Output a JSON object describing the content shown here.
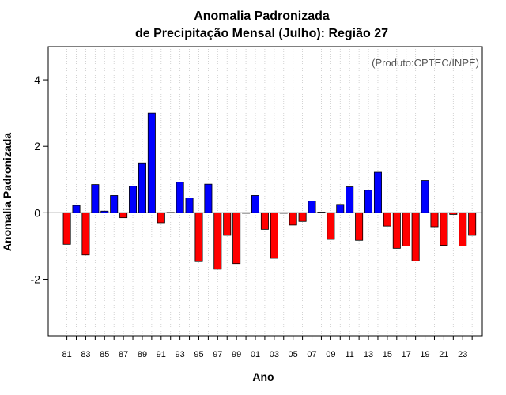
{
  "chart_data": {
    "type": "bar",
    "title": "Anomalia Padronizada",
    "subtitle": "de Precipitação Mensal (Julho): Região 27",
    "xlabel": "Ano",
    "ylabel": "Anomalia Padronizada",
    "credit": "(Produto:CPTEC/INPE)",
    "ylim": [
      -3.7,
      5.0
    ],
    "yticks": [
      -2,
      0,
      2,
      4
    ],
    "ytick_labels": [
      "-2",
      "0",
      "2",
      "4"
    ],
    "grid": "vertical dotted",
    "positive_color": "#0000ff",
    "negative_color": "#ff0000",
    "categories": [
      "81",
      "82",
      "83",
      "84",
      "85",
      "86",
      "87",
      "88",
      "89",
      "90",
      "91",
      "92",
      "93",
      "94",
      "95",
      "96",
      "97",
      "98",
      "99",
      "00",
      "01",
      "02",
      "03",
      "04",
      "05",
      "06",
      "07",
      "08",
      "09",
      "10",
      "11",
      "12",
      "13",
      "14",
      "15",
      "16",
      "17",
      "18",
      "19",
      "20",
      "21",
      "22",
      "23",
      "24"
    ],
    "tick_labels": [
      "81",
      "83",
      "85",
      "87",
      "89",
      "91",
      "93",
      "95",
      "97",
      "99",
      "01",
      "03",
      "05",
      "07",
      "09",
      "11",
      "13",
      "15",
      "17",
      "19",
      "21",
      "23"
    ],
    "values": [
      -0.95,
      0.22,
      -1.27,
      0.85,
      0.05,
      0.52,
      -0.15,
      0.8,
      1.5,
      3.0,
      -0.3,
      0.01,
      0.92,
      0.45,
      -1.47,
      0.86,
      -1.7,
      -0.68,
      -1.53,
      0.0,
      0.52,
      -0.5,
      -1.37,
      0.0,
      -0.37,
      -0.26,
      0.35,
      0.02,
      -0.8,
      0.25,
      0.78,
      -0.83,
      0.68,
      1.22,
      -0.4,
      -1.07,
      -1.0,
      -1.45,
      0.97,
      -0.42,
      -0.98,
      -0.05,
      -1.0,
      -0.68
    ]
  }
}
